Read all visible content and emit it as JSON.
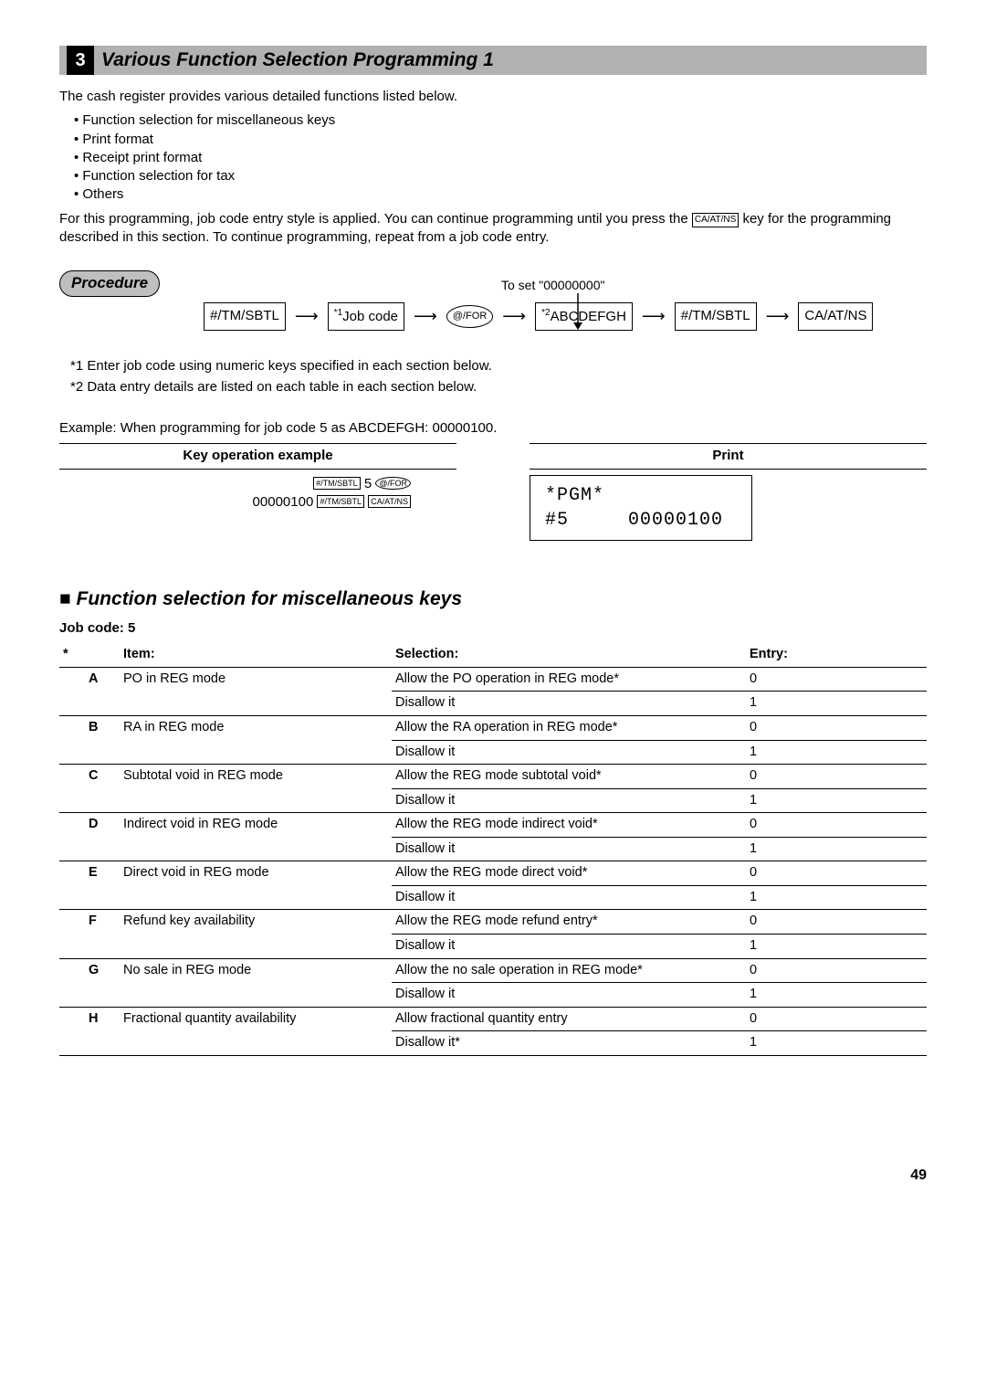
{
  "section": {
    "number": "3",
    "title": "Various Function Selection Programming 1"
  },
  "intro": "The cash register provides various detailed functions listed below.",
  "bullets": [
    "Function selection for miscellaneous keys",
    "Print format",
    "Receipt print format",
    "Function selection for tax",
    "Others"
  ],
  "para2_a": "For this programming, job code entry style is applied.  You can continue programming until you press the ",
  "para2_key": "CA/AT/NS",
  "para2_b": "key for the programming described in this section.  To continue programming, repeat from a job code entry.",
  "procedure_label": "Procedure",
  "toset_label": "To set \"00000000\"",
  "flow": {
    "b1": "#/TM/SBTL",
    "b2a": "*",
    "b2b": "1",
    "b2c": "Job code",
    "b3": "@/FOR",
    "b4a": "*",
    "b4b": "2",
    "b4c": "ABCDEFGH",
    "b5": "#/TM/SBTL",
    "b6": "CA/AT/NS"
  },
  "notes": [
    "*1  Enter job code using numeric keys specified in each section below.",
    "*2  Data entry details are listed on each table in each section below."
  ],
  "example": "Example:  When programming for job code 5 as ABCDEFGH: 00000100.",
  "keyop_header": "Key operation example",
  "print_header": "Print",
  "keyop": {
    "l1_k1": "#/TM/SBTL",
    "l1_num": "5",
    "l1_k2": "@/FOR",
    "l2_num": "00000100",
    "l2_k1": "#/TM/SBTL",
    "l2_k2": "CA/AT/NS"
  },
  "print_box": {
    "l1": "*PGM*",
    "l2a": "#5",
    "l2b": "00000100"
  },
  "subsection": "Function selection for miscellaneous keys",
  "job_code": "Job code:  5",
  "table": {
    "hstar": "*",
    "h1": "Item:",
    "h2": "Selection:",
    "h3": "Entry:",
    "rows": [
      {
        "c": "A",
        "item": "PO in REG mode",
        "s1": "Allow the PO operation in REG mode*",
        "e1": "0",
        "s2": "Disallow it",
        "e2": "1"
      },
      {
        "c": "B",
        "item": "RA in REG mode",
        "s1": "Allow the RA operation in REG mode*",
        "e1": "0",
        "s2": "Disallow it",
        "e2": "1"
      },
      {
        "c": "C",
        "item": "Subtotal void in REG mode",
        "s1": "Allow the REG mode subtotal void*",
        "e1": "0",
        "s2": "Disallow it",
        "e2": "1"
      },
      {
        "c": "D",
        "item": "Indirect void in REG mode",
        "s1": "Allow the REG mode indirect void*",
        "e1": "0",
        "s2": "Disallow it",
        "e2": "1"
      },
      {
        "c": "E",
        "item": "Direct void in REG mode",
        "s1": "Allow the REG mode direct void*",
        "e1": "0",
        "s2": "Disallow it",
        "e2": "1"
      },
      {
        "c": "F",
        "item": "Refund key availability",
        "s1": "Allow the REG mode refund entry*",
        "e1": "0",
        "s2": "Disallow it",
        "e2": "1"
      },
      {
        "c": "G",
        "item": "No sale in REG mode",
        "s1": "Allow the no sale operation in REG mode*",
        "e1": "0",
        "s2": "Disallow it",
        "e2": "1"
      },
      {
        "c": "H",
        "item": "Fractional quantity availability",
        "s1": "Allow fractional quantity entry",
        "e1": "0",
        "s2": "Disallow it*",
        "e2": "1"
      }
    ]
  },
  "page": "49"
}
